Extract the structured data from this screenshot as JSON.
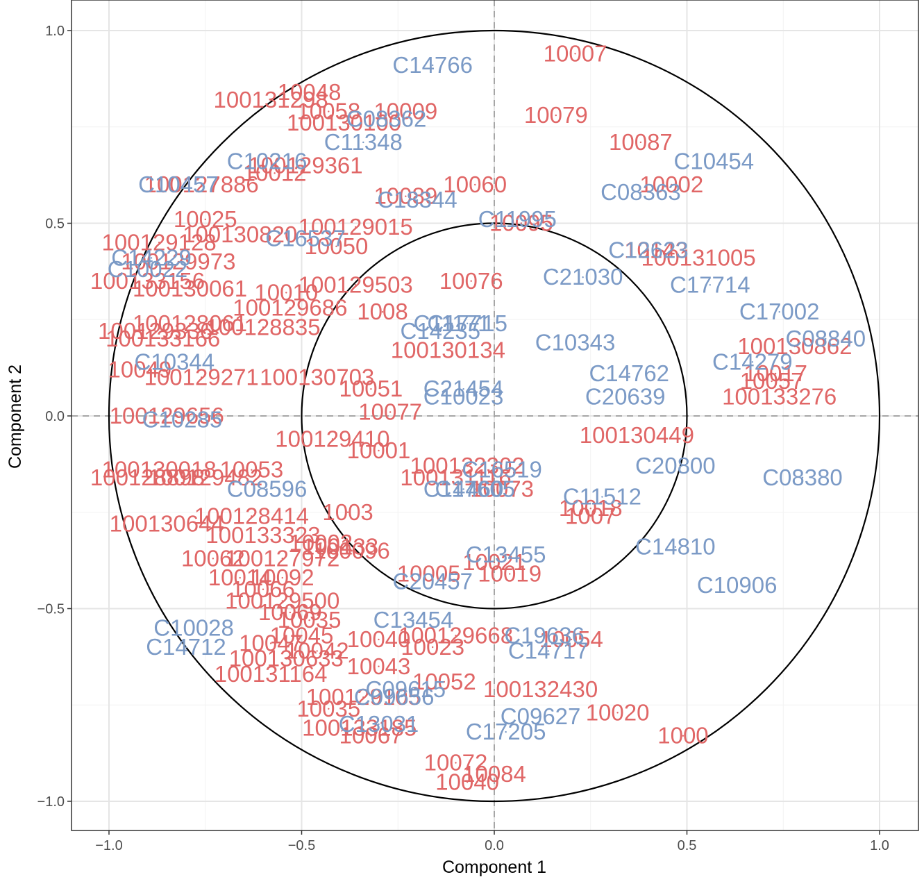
{
  "chart_data": {
    "type": "scatter",
    "xlabel": "Component  1",
    "ylabel": "Component  2",
    "xlim": [
      -1.1,
      1.1
    ],
    "ylim": [
      -1.1,
      1.1
    ],
    "x_ticks": [
      -1.0,
      -0.5,
      0.0,
      0.5,
      1.0
    ],
    "y_ticks": [
      -1.0,
      -0.5,
      0.0,
      0.5,
      1.0
    ],
    "x_tick_labels": [
      "−1.0",
      "−0.5",
      "0.0",
      "0.5",
      "1.0"
    ],
    "y_tick_labels": [
      "−1.0",
      "−0.5",
      "0.0",
      "0.5",
      "1.0"
    ],
    "grid": true,
    "circle_radii": [
      1.0,
      0.5
    ],
    "reference_lines": {
      "x": 0,
      "y": 0,
      "style": "dashed"
    },
    "colors": {
      "red_group": "#e06666",
      "blue_group": "#7b9ac6"
    },
    "series": [
      {
        "color": "#e06666",
        "points": [
          {
            "label": "10007",
            "x": 0.21,
            "y": 0.94
          },
          {
            "label": "10079",
            "x": 0.16,
            "y": 0.78
          },
          {
            "label": "10087",
            "x": 0.38,
            "y": 0.71
          },
          {
            "label": "10002",
            "x": 0.46,
            "y": 0.6
          },
          {
            "label": "10060",
            "x": -0.05,
            "y": 0.6
          },
          {
            "label": "10089",
            "x": -0.23,
            "y": 0.57
          },
          {
            "label": "10095",
            "x": 0.07,
            "y": 0.5
          },
          {
            "label": "100131005",
            "x": 0.53,
            "y": 0.41
          },
          {
            "label": "10143",
            "x": 0.42,
            "y": 0.43
          },
          {
            "label": "10076",
            "x": -0.06,
            "y": 0.35
          },
          {
            "label": "100129503",
            "x": -0.36,
            "y": 0.34
          },
          {
            "label": "100130134",
            "x": -0.12,
            "y": 0.17
          },
          {
            "label": "100130862",
            "x": 0.78,
            "y": 0.18
          },
          {
            "label": "10017",
            "x": 0.73,
            "y": 0.11
          },
          {
            "label": "10057",
            "x": 0.72,
            "y": 0.09
          },
          {
            "label": "100133276",
            "x": 0.74,
            "y": 0.05
          },
          {
            "label": "100130449",
            "x": 0.37,
            "y": -0.05
          },
          {
            "label": "10018",
            "x": 0.25,
            "y": -0.24
          },
          {
            "label": "1007",
            "x": 0.25,
            "y": -0.26
          },
          {
            "label": "10073",
            "x": 0.02,
            "y": -0.19
          },
          {
            "label": "100132302",
            "x": -0.07,
            "y": -0.13
          },
          {
            "label": "100131116",
            "x": -0.1,
            "y": -0.16
          },
          {
            "label": "10019",
            "x": 0.04,
            "y": -0.41
          },
          {
            "label": "10021",
            "x": 0.0,
            "y": -0.38
          },
          {
            "label": "10005",
            "x": -0.17,
            "y": -0.41
          },
          {
            "label": "10054",
            "x": 0.2,
            "y": -0.58
          },
          {
            "label": "100129668",
            "x": -0.1,
            "y": -0.57
          },
          {
            "label": "10023",
            "x": -0.16,
            "y": -0.6
          },
          {
            "label": "10040",
            "x": -0.3,
            "y": -0.58
          },
          {
            "label": "10043",
            "x": -0.3,
            "y": -0.65
          },
          {
            "label": "10052",
            "x": -0.13,
            "y": -0.69
          },
          {
            "label": "100132430",
            "x": 0.12,
            "y": -0.71
          },
          {
            "label": "10020",
            "x": 0.32,
            "y": -0.77
          },
          {
            "label": "1000",
            "x": 0.49,
            "y": -0.83
          },
          {
            "label": "10072",
            "x": -0.1,
            "y": -0.9
          },
          {
            "label": "10084",
            "x": 0.0,
            "y": -0.93
          },
          {
            "label": "10040",
            "x": -0.07,
            "y": -0.95
          },
          {
            "label": "10067",
            "x": -0.32,
            "y": -0.83
          },
          {
            "label": "100133185",
            "x": -0.35,
            "y": -0.81
          },
          {
            "label": "10035",
            "x": -0.43,
            "y": -0.76
          },
          {
            "label": "100129105",
            "x": -0.34,
            "y": -0.73
          },
          {
            "label": "100131164",
            "x": -0.58,
            "y": -0.67
          },
          {
            "label": "100130633",
            "x": -0.54,
            "y": -0.63
          },
          {
            "label": "10047",
            "x": -0.58,
            "y": -0.59
          },
          {
            "label": "10042",
            "x": -0.46,
            "y": -0.61
          },
          {
            "label": "10045",
            "x": -0.5,
            "y": -0.57
          },
          {
            "label": "10035",
            "x": -0.48,
            "y": -0.53
          },
          {
            "label": "10069",
            "x": -0.53,
            "y": -0.51
          },
          {
            "label": "100129500",
            "x": -0.55,
            "y": -0.48
          },
          {
            "label": "10066",
            "x": -0.6,
            "y": -0.45
          },
          {
            "label": "10092",
            "x": -0.55,
            "y": -0.42
          },
          {
            "label": "10014",
            "x": -0.66,
            "y": -0.42
          },
          {
            "label": "100127972",
            "x": -0.55,
            "y": -0.37
          },
          {
            "label": "100096",
            "x": -0.37,
            "y": -0.35
          },
          {
            "label": "100133",
            "x": -0.4,
            "y": -0.34
          },
          {
            "label": "1003",
            "x": -0.38,
            "y": -0.25
          },
          {
            "label": "100128414",
            "x": -0.63,
            "y": -0.26
          },
          {
            "label": "100130644",
            "x": -0.85,
            "y": -0.28
          },
          {
            "label": "100133323",
            "x": -0.6,
            "y": -0.31
          },
          {
            "label": "10002",
            "x": -0.45,
            "y": -0.33
          },
          {
            "label": "10062",
            "x": -0.73,
            "y": -0.37
          },
          {
            "label": "10053",
            "x": -0.63,
            "y": -0.14
          },
          {
            "label": "100129482",
            "x": -0.75,
            "y": -0.16
          },
          {
            "label": "100128898",
            "x": -0.9,
            "y": -0.16
          },
          {
            "label": "100130018",
            "x": -0.87,
            "y": -0.14
          },
          {
            "label": "10001",
            "x": -0.3,
            "y": -0.09
          },
          {
            "label": "100129410",
            "x": -0.42,
            "y": -0.06
          },
          {
            "label": "10077",
            "x": -0.27,
            "y": 0.01
          },
          {
            "label": "10051",
            "x": -0.32,
            "y": 0.07
          },
          {
            "label": "100130703",
            "x": -0.46,
            "y": 0.1
          },
          {
            "label": "100129271",
            "x": -0.76,
            "y": 0.1
          },
          {
            "label": "10049",
            "x": -0.92,
            "y": 0.12
          },
          {
            "label": "100129656",
            "x": -0.85,
            "y": 0.0
          },
          {
            "label": "100133166",
            "x": -0.86,
            "y": 0.2
          },
          {
            "label": "100129336",
            "x": -0.88,
            "y": 0.22
          },
          {
            "label": "100128061",
            "x": -0.79,
            "y": 0.24
          },
          {
            "label": "100128835",
            "x": -0.6,
            "y": 0.23
          },
          {
            "label": "100129686",
            "x": -0.53,
            "y": 0.28
          },
          {
            "label": "1008",
            "x": -0.29,
            "y": 0.27
          },
          {
            "label": "10010",
            "x": -0.54,
            "y": 0.32
          },
          {
            "label": "100130061",
            "x": -0.79,
            "y": 0.33
          },
          {
            "label": "100133156",
            "x": -0.9,
            "y": 0.35
          },
          {
            "label": "100129973",
            "x": -0.82,
            "y": 0.4
          },
          {
            "label": "100129128",
            "x": -0.87,
            "y": 0.45
          },
          {
            "label": "100130820",
            "x": -0.66,
            "y": 0.47
          },
          {
            "label": "10025",
            "x": -0.75,
            "y": 0.51
          },
          {
            "label": "100129015",
            "x": -0.36,
            "y": 0.49
          },
          {
            "label": "10050",
            "x": -0.41,
            "y": 0.44
          },
          {
            "label": "100127886",
            "x": -0.76,
            "y": 0.6
          },
          {
            "label": "100129361",
            "x": -0.49,
            "y": 0.65
          },
          {
            "label": "10012",
            "x": -0.57,
            "y": 0.63
          },
          {
            "label": "100131298",
            "x": -0.58,
            "y": 0.82
          },
          {
            "label": "10048",
            "x": -0.48,
            "y": 0.84
          },
          {
            "label": "10058",
            "x": -0.43,
            "y": 0.79
          },
          {
            "label": "10009",
            "x": -0.23,
            "y": 0.79
          },
          {
            "label": "100130100",
            "x": -0.39,
            "y": 0.76
          }
        ]
      },
      {
        "color": "#7b9ac6",
        "points": [
          {
            "label": "C14766",
            "x": -0.16,
            "y": 0.91
          },
          {
            "label": "C08362",
            "x": -0.28,
            "y": 0.77
          },
          {
            "label": "C11348",
            "x": -0.34,
            "y": 0.71
          },
          {
            "label": "C10216",
            "x": -0.59,
            "y": 0.66
          },
          {
            "label": "C10457",
            "x": -0.82,
            "y": 0.6
          },
          {
            "label": "C18344",
            "x": -0.2,
            "y": 0.56
          },
          {
            "label": "C11995",
            "x": 0.06,
            "y": 0.51
          },
          {
            "label": "C16537",
            "x": -0.49,
            "y": 0.46
          },
          {
            "label": "C10454",
            "x": 0.57,
            "y": 0.66
          },
          {
            "label": "C08363",
            "x": 0.38,
            "y": 0.58
          },
          {
            "label": "C12623",
            "x": 0.4,
            "y": 0.43
          },
          {
            "label": "C21030",
            "x": 0.23,
            "y": 0.36
          },
          {
            "label": "C17714",
            "x": 0.56,
            "y": 0.34
          },
          {
            "label": "C17002",
            "x": 0.74,
            "y": 0.27
          },
          {
            "label": "C08840",
            "x": 0.86,
            "y": 0.2
          },
          {
            "label": "C14279",
            "x": 0.67,
            "y": 0.14
          },
          {
            "label": "C14762",
            "x": 0.35,
            "y": 0.11
          },
          {
            "label": "C20639",
            "x": 0.34,
            "y": 0.05
          },
          {
            "label": "C10343",
            "x": 0.21,
            "y": 0.19
          },
          {
            "label": "C11171",
            "x": -0.11,
            "y": 0.24
          },
          {
            "label": "C17715",
            "x": -0.07,
            "y": 0.24
          },
          {
            "label": "C14235",
            "x": -0.14,
            "y": 0.22
          },
          {
            "label": "C21454",
            "x": -0.08,
            "y": 0.07
          },
          {
            "label": "C10023",
            "x": -0.08,
            "y": 0.05
          },
          {
            "label": "C14229",
            "x": -0.89,
            "y": 0.41
          },
          {
            "label": "C10022",
            "x": -0.9,
            "y": 0.38
          },
          {
            "label": "C10344",
            "x": -0.83,
            "y": 0.14
          },
          {
            "label": "C10285",
            "x": -0.81,
            "y": -0.01
          },
          {
            "label": "C16519",
            "x": 0.02,
            "y": -0.14
          },
          {
            "label": "C14460",
            "x": -0.08,
            "y": -0.19
          },
          {
            "label": "C17605",
            "x": -0.05,
            "y": -0.19
          },
          {
            "label": "C20800",
            "x": 0.47,
            "y": -0.13
          },
          {
            "label": "C08380",
            "x": 0.8,
            "y": -0.16
          },
          {
            "label": "C11512",
            "x": 0.28,
            "y": -0.21
          },
          {
            "label": "C08596",
            "x": -0.59,
            "y": -0.19
          },
          {
            "label": "C14810",
            "x": 0.47,
            "y": -0.34
          },
          {
            "label": "C10906",
            "x": 0.63,
            "y": -0.44
          },
          {
            "label": "C13455",
            "x": 0.03,
            "y": -0.36
          },
          {
            "label": "C20457",
            "x": -0.16,
            "y": -0.43
          },
          {
            "label": "C13454",
            "x": -0.21,
            "y": -0.53
          },
          {
            "label": "C19636",
            "x": 0.13,
            "y": -0.57
          },
          {
            "label": "C14717",
            "x": 0.14,
            "y": -0.61
          },
          {
            "label": "C10028",
            "x": -0.78,
            "y": -0.55
          },
          {
            "label": "C14712",
            "x": -0.8,
            "y": -0.6
          },
          {
            "label": "C09615",
            "x": -0.23,
            "y": -0.71
          },
          {
            "label": "C09656",
            "x": -0.26,
            "y": -0.73
          },
          {
            "label": "C09627",
            "x": 0.12,
            "y": -0.78
          },
          {
            "label": "C17205",
            "x": 0.03,
            "y": -0.82
          },
          {
            "label": "C13031",
            "x": -0.3,
            "y": -0.8
          }
        ]
      }
    ]
  }
}
